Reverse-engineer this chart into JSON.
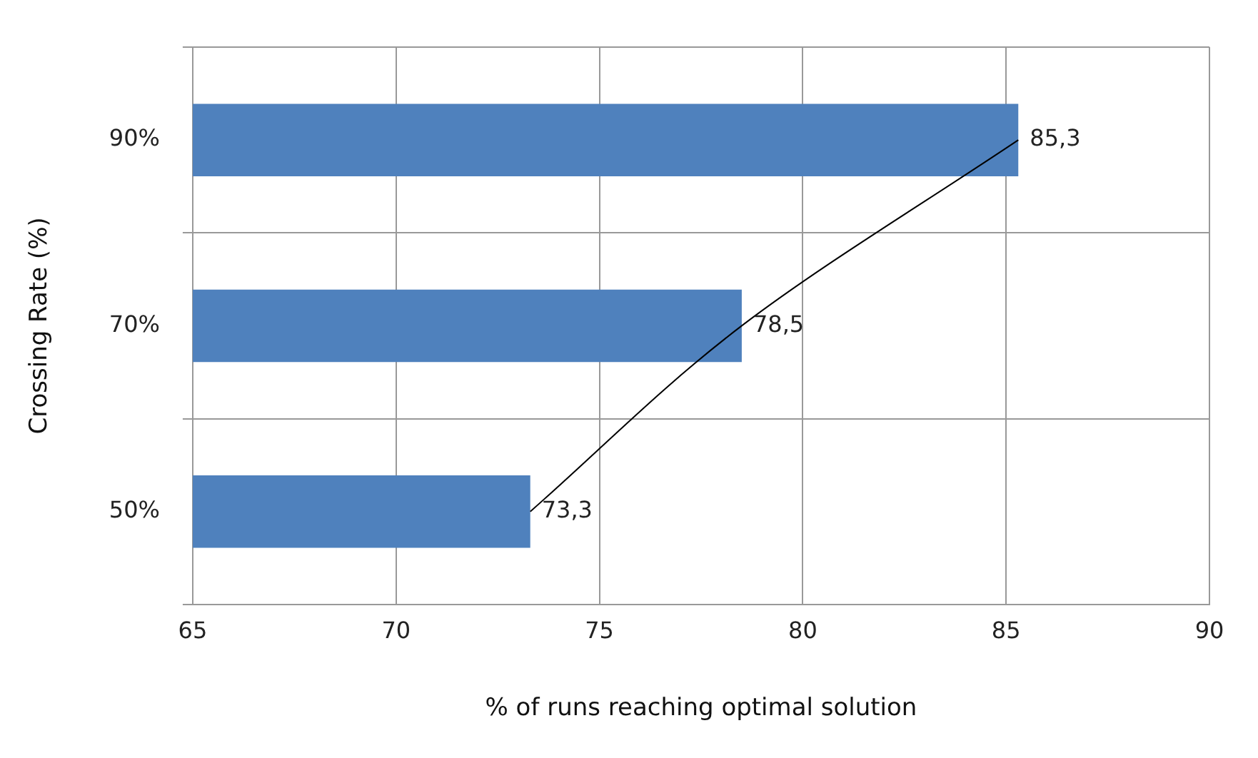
{
  "chart_data": {
    "type": "bar",
    "orientation": "horizontal",
    "xlabel": "% of runs reaching optimal solution",
    "ylabel": "Crossing Rate (%)",
    "categories": [
      "90%",
      "70%",
      "50%"
    ],
    "series": [
      {
        "color": "#4f81bd",
        "values": [
          85.3,
          78.5,
          73.3
        ],
        "value_labels": [
          "85,3",
          "78,5",
          "73,3"
        ]
      },
      {
        "type": "line",
        "color": "#000000",
        "values": [
          85.3,
          78.5,
          73.3
        ]
      }
    ],
    "xlim": [
      65,
      90
    ],
    "xticks": [
      65,
      70,
      75,
      80,
      85,
      90
    ],
    "grid": true
  }
}
